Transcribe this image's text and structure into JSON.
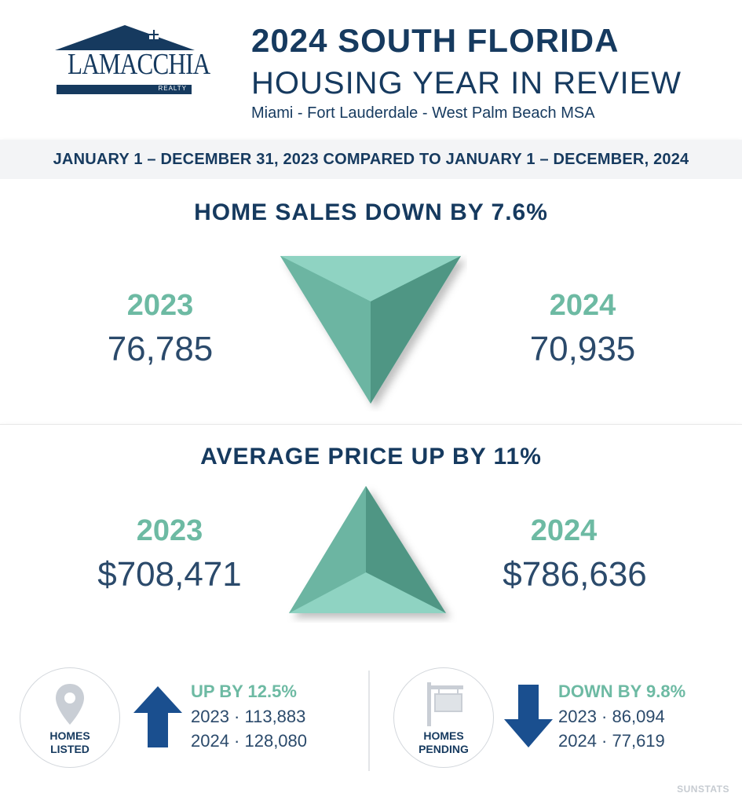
{
  "header": {
    "logo": {
      "name": "LAMACCHIA",
      "sub": "REALTY"
    },
    "title_main": "2024 SOUTH FLORIDA",
    "title_sub": "HOUSING YEAR IN REVIEW",
    "region": "Miami - Fort Lauderdale - West Palm Beach MSA"
  },
  "date_range": "JANUARY 1  –  DECEMBER 31, 2023 COMPARED TO JANUARY 1  –  DECEMBER, 2024",
  "home_sales": {
    "title": "HOME SALES DOWN BY 7.6%",
    "year_a": "2023",
    "value_a": "76,785",
    "year_b": "2024",
    "value_b": "70,935",
    "icon": "down-pyramid-icon"
  },
  "average_price": {
    "title": "AVERAGE PRICE UP BY 11%",
    "year_a": "2023",
    "value_a": "$708,471",
    "year_b": "2024",
    "value_b": "$786,636",
    "icon": "up-pyramid-icon"
  },
  "homes_listed": {
    "label_1": "HOMES",
    "label_2": "LISTED",
    "headline": "UP BY 12.5%",
    "line_1": "2023 ·  113,883",
    "line_2": "2024 ·  128,080",
    "icon": "location-pin-icon"
  },
  "homes_pending": {
    "label_1": "HOMES",
    "label_2": "PENDING",
    "headline": "DOWN BY 9.8%",
    "line_1": "2023 ·  86,094",
    "line_2": "2024 ·  77,619",
    "icon": "real-estate-sign-icon"
  },
  "source": "SUNSTATS",
  "colors": {
    "navy": "#163a5f",
    "teal": "#6dbaa3",
    "arrow_blue": "#1a4f8f"
  }
}
